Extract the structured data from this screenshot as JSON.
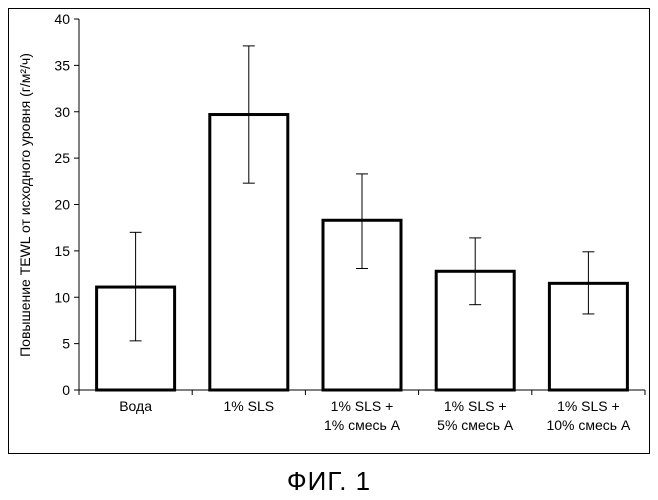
{
  "caption": "ФИГ. 1",
  "chart_data": {
    "type": "bar",
    "title": "",
    "xlabel": "",
    "ylabel": "Повышение TEWL от исходного уровня (г/м²/ч)",
    "ylim": [
      0,
      40
    ],
    "yticks": [
      0,
      5,
      10,
      15,
      20,
      25,
      30,
      35,
      40
    ],
    "grid": false,
    "legend": "none",
    "categories": [
      [
        "Вода"
      ],
      [
        "1% SLS"
      ],
      [
        "1% SLS +",
        "1% смесь А"
      ],
      [
        "1% SLS +",
        "5% смесь А"
      ],
      [
        "1% SLS +",
        "10% смесь А"
      ]
    ],
    "values": [
      11.1,
      29.7,
      18.3,
      12.8,
      11.5
    ],
    "error_low": [
      5.3,
      22.3,
      13.1,
      9.2,
      8.2
    ],
    "error_high": [
      17.0,
      37.1,
      23.3,
      16.4,
      14.9
    ],
    "bar_fill": "#ffffff",
    "bar_stroke": "#000000"
  }
}
